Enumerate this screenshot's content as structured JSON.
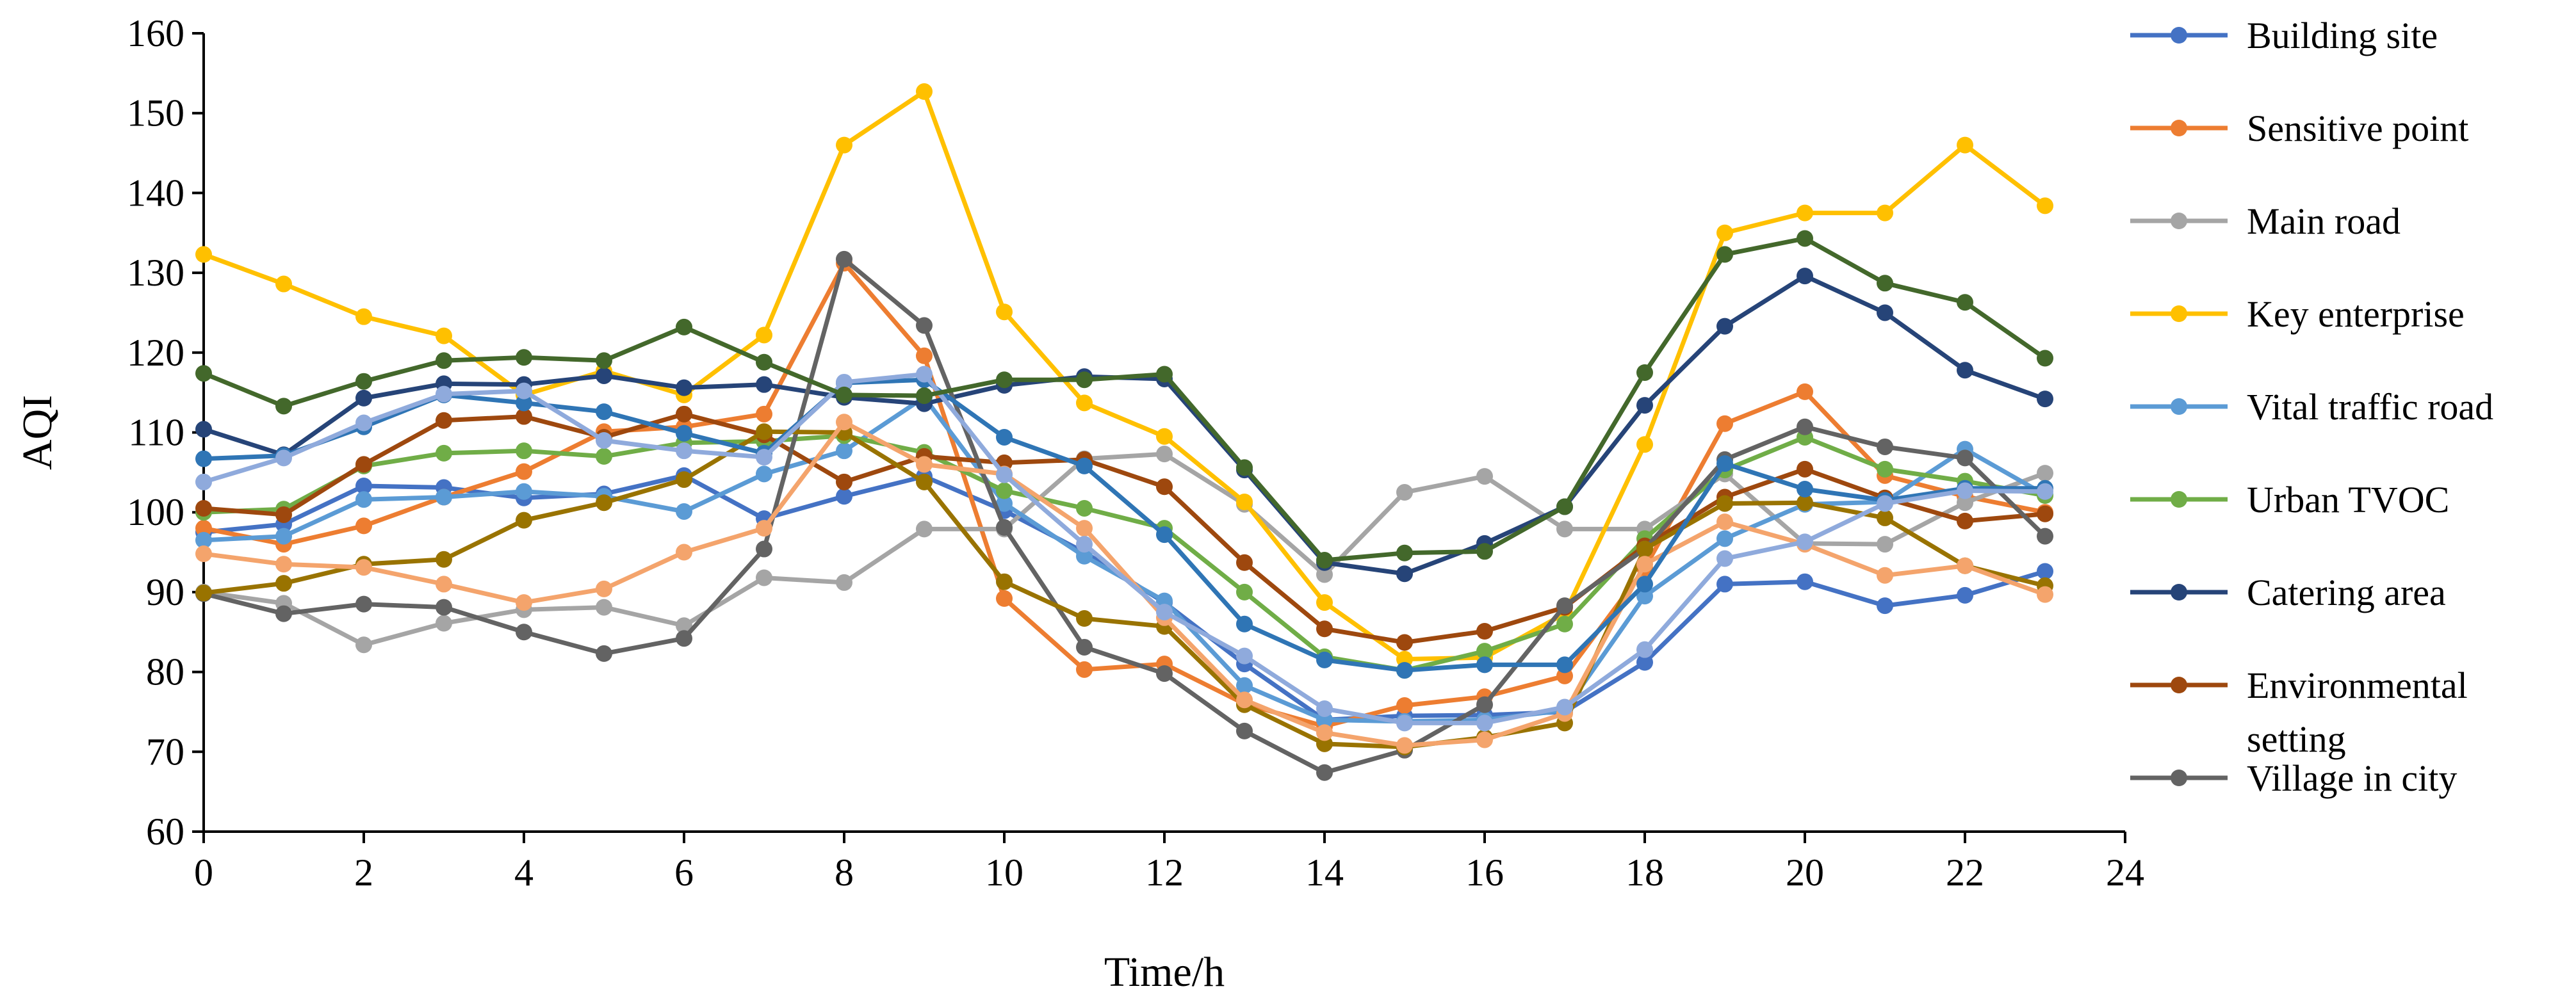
{
  "chart_data": {
    "type": "line",
    "xlabel": "Time/h",
    "ylabel": "AQI",
    "xlim": [
      0,
      24
    ],
    "ylim": [
      60,
      160
    ],
    "x_ticks": [
      0,
      2,
      4,
      6,
      8,
      10,
      12,
      14,
      16,
      18,
      20,
      22,
      24
    ],
    "y_ticks": [
      60,
      70,
      80,
      90,
      100,
      110,
      120,
      130,
      140,
      150,
      160
    ],
    "grid": false,
    "legend_position": "right",
    "x": [
      0,
      1,
      2,
      3,
      4,
      5,
      6,
      7,
      8,
      9,
      10,
      11,
      12,
      13,
      14,
      15,
      16,
      17,
      18,
      19,
      20,
      21,
      22,
      23
    ],
    "series": [
      {
        "name": "Building site",
        "color": "#4472C4",
        "values": [
          97.5,
          98.5,
          103.3,
          103.1,
          101.8,
          102.3,
          104.6,
          99.2,
          102.0,
          104.5,
          100.2,
          95.0,
          88.7,
          81.0,
          74.0,
          74.5,
          74.6,
          75.0,
          81.2,
          91.0,
          91.3,
          88.3,
          89.6,
          92.6
        ]
      },
      {
        "name": "Sensitive point",
        "color": "#ED7D31",
        "values": [
          98.0,
          96.0,
          98.3,
          101.9,
          105.1,
          110.1,
          110.7,
          112.3,
          131.2,
          119.6,
          89.2,
          80.3,
          81.0,
          76.0,
          73.2,
          75.8,
          76.9,
          79.5,
          93.0,
          111.1,
          115.1,
          104.6,
          102.0,
          100.0
        ]
      },
      {
        "name": "Main road",
        "color": "#A5A5A5",
        "values": [
          90.0,
          88.6,
          83.4,
          86.1,
          87.8,
          88.1,
          85.8,
          91.8,
          91.2,
          97.9,
          97.9,
          106.7,
          107.3,
          101.0,
          92.2,
          102.5,
          104.5,
          97.9,
          97.9,
          104.8,
          96.1,
          96.0,
          101.2,
          104.9
        ]
      },
      {
        "name": "Key enterprise",
        "color": "#FFC000",
        "values": [
          132.3,
          128.6,
          124.5,
          122.1,
          114.7,
          117.7,
          114.7,
          122.2,
          146.0,
          152.7,
          125.1,
          113.7,
          109.5,
          101.3,
          88.7,
          81.6,
          81.8,
          87.3,
          108.5,
          135.0,
          137.5,
          137.5,
          146.0,
          138.4
        ]
      },
      {
        "name": "Vital traffic road",
        "color": "#5B9BD5",
        "values": [
          96.5,
          97.0,
          101.6,
          101.9,
          102.6,
          102.0,
          100.1,
          104.8,
          107.7,
          114.4,
          101.1,
          94.5,
          88.9,
          78.3,
          74.0,
          73.8,
          74.0,
          75.2,
          89.5,
          96.7,
          101.0,
          101.3,
          107.9,
          102.2
        ]
      },
      {
        "name": "Urban TVOC",
        "color": "#70AD47",
        "values": [
          100.0,
          100.4,
          105.8,
          107.4,
          107.7,
          107.0,
          108.7,
          108.9,
          109.6,
          107.5,
          102.7,
          100.5,
          98.0,
          90.0,
          81.9,
          80.2,
          82.6,
          86.0,
          96.7,
          105.3,
          109.4,
          105.4,
          103.9,
          102.1
        ]
      },
      {
        "name": "Catering area",
        "color": "#264478",
        "values": [
          110.4,
          107.2,
          114.3,
          116.1,
          116.0,
          117.1,
          115.6,
          116.0,
          114.4,
          113.6,
          115.9,
          117.0,
          116.7,
          105.3,
          93.7,
          92.3,
          96.1,
          100.7,
          113.4,
          123.3,
          129.6,
          125.0,
          117.8,
          114.2
        ]
      },
      {
        "name": "Environmental setting",
        "color": "#9E480E",
        "values": [
          100.5,
          99.7,
          106.0,
          111.5,
          112.0,
          109.4,
          112.3,
          109.7,
          103.8,
          107.0,
          106.2,
          106.6,
          103.2,
          93.7,
          85.4,
          83.7,
          85.1,
          88.1,
          95.8,
          101.9,
          105.4,
          101.8,
          98.9,
          99.8
        ]
      },
      {
        "name": "Village in city",
        "color": "#636363",
        "values": [
          89.8,
          87.3,
          88.5,
          88.1,
          85.0,
          82.3,
          84.2,
          95.4,
          131.7,
          123.4,
          98.1,
          83.1,
          79.8,
          72.6,
          67.4,
          70.2,
          75.9,
          88.3,
          95.4,
          106.6,
          110.7,
          108.2,
          106.8,
          97.0
        ]
      },
      {
        "name": "",
        "color": "#997300",
        "values": [
          89.9,
          91.1,
          93.5,
          94.1,
          99.0,
          101.2,
          104.1,
          110.1,
          110.0,
          103.8,
          91.3,
          86.7,
          85.7,
          75.9,
          71.0,
          70.6,
          71.8,
          73.6,
          95.4,
          101.1,
          101.2,
          99.3,
          93.3,
          90.8
        ]
      },
      {
        "name": "",
        "color": "#F4A46C",
        "values": [
          94.8,
          93.5,
          93.1,
          91.0,
          88.7,
          90.4,
          95.0,
          98.0,
          111.3,
          106.0,
          104.8,
          98.0,
          86.8,
          76.5,
          72.4,
          70.8,
          71.5,
          74.8,
          93.5,
          98.8,
          96.0,
          92.1,
          93.3,
          89.7
        ]
      },
      {
        "name": "",
        "color": "#2F75B5",
        "values": [
          106.7,
          107.1,
          110.7,
          114.7,
          113.7,
          112.6,
          109.9,
          107.4,
          116.2,
          116.6,
          109.4,
          105.8,
          97.2,
          86.0,
          81.5,
          80.2,
          80.9,
          80.9,
          91.0,
          106.1,
          102.9,
          101.5,
          103.0,
          103.0
        ]
      },
      {
        "name": "",
        "color": "#8FAADC",
        "values": [
          103.8,
          106.8,
          111.2,
          114.8,
          115.2,
          109.0,
          107.7,
          106.9,
          116.3,
          117.3,
          104.7,
          96.0,
          87.5,
          82.0,
          75.4,
          73.6,
          73.6,
          75.6,
          82.8,
          94.2,
          96.3,
          101.1,
          102.7,
          102.6
        ]
      },
      {
        "name": "",
        "color": "#43682B",
        "values": [
          117.4,
          113.3,
          116.4,
          119.0,
          119.4,
          119.0,
          123.2,
          118.8,
          114.7,
          114.6,
          116.6,
          116.6,
          117.3,
          105.6,
          94.0,
          94.9,
          95.1,
          100.7,
          117.5,
          132.3,
          134.3,
          128.7,
          126.3,
          119.3
        ]
      }
    ]
  }
}
